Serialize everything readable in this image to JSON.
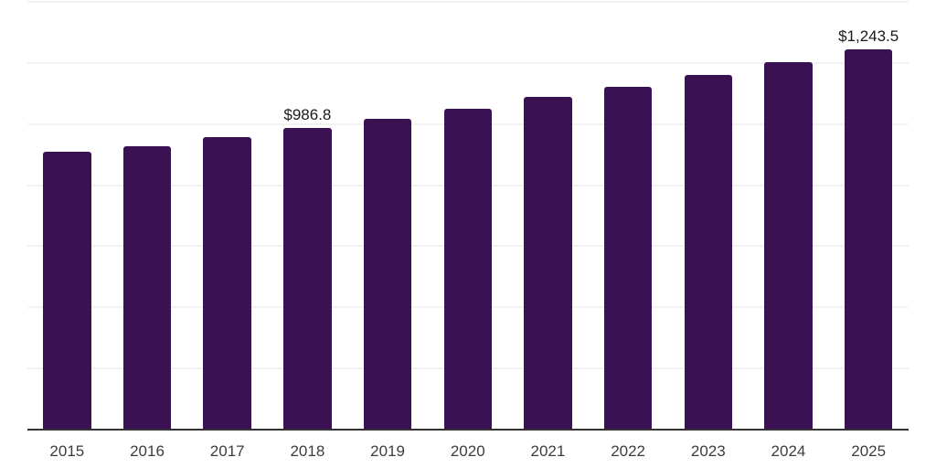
{
  "chart_data": {
    "type": "bar",
    "title": "",
    "xlabel": "",
    "ylabel": "",
    "categories": [
      "2015",
      "2016",
      "2017",
      "2018",
      "2019",
      "2020",
      "2021",
      "2022",
      "2023",
      "2024",
      "2025"
    ],
    "values": [
      908,
      928,
      958,
      986.8,
      1018,
      1050,
      1088,
      1122,
      1162,
      1202,
      1243.5
    ],
    "data_labels": [
      "",
      "",
      "",
      "$986.8",
      "",
      "",
      "",
      "",
      "",
      "",
      "$1,243.5"
    ],
    "ylim": [
      0,
      1400
    ],
    "gridline_step": 200,
    "grid": "horizontal",
    "legend": "none",
    "y_tick_labels_visible": false
  },
  "colors": {
    "bar": "#3a1254",
    "gridline": "#f2f2f3",
    "axis_line": "#333333",
    "tick_label": "#3d3d3d",
    "data_label": "#1a1a1a",
    "background": "#ffffff"
  }
}
